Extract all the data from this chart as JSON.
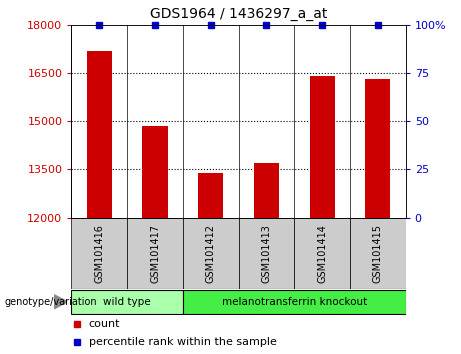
{
  "title": "GDS1964 / 1436297_a_at",
  "samples": [
    "GSM101416",
    "GSM101417",
    "GSM101412",
    "GSM101413",
    "GSM101414",
    "GSM101415"
  ],
  "bar_values": [
    17200,
    14850,
    13400,
    13700,
    16400,
    16300
  ],
  "percentile_values": [
    100,
    100,
    100,
    100,
    100,
    100
  ],
  "bar_color": "#cc0000",
  "dot_color": "#0000cc",
  "ylim_left": [
    12000,
    18000
  ],
  "ylim_right": [
    0,
    100
  ],
  "yticks_left": [
    12000,
    13500,
    15000,
    16500,
    18000
  ],
  "yticks_right": [
    0,
    25,
    50,
    75,
    100
  ],
  "ytick_labels_left": [
    "12000",
    "13500",
    "15000",
    "16500",
    "18000"
  ],
  "ytick_labels_right": [
    "0",
    "25",
    "50",
    "75",
    "100%"
  ],
  "dotted_lines": [
    13500,
    15000,
    16500
  ],
  "groups": [
    {
      "label": "wild type",
      "indices": [
        0,
        1
      ],
      "color": "#aaffaa"
    },
    {
      "label": "melanotransferrin knockout",
      "indices": [
        2,
        3,
        4,
        5
      ],
      "color": "#44ee44"
    }
  ],
  "group_label": "genotype/variation",
  "legend_count_label": "count",
  "legend_percentile_label": "percentile rank within the sample",
  "bar_width": 0.45,
  "bg_color": "#ffffff",
  "plot_bg_color": "#ffffff",
  "label_bg_color": "#cccccc"
}
